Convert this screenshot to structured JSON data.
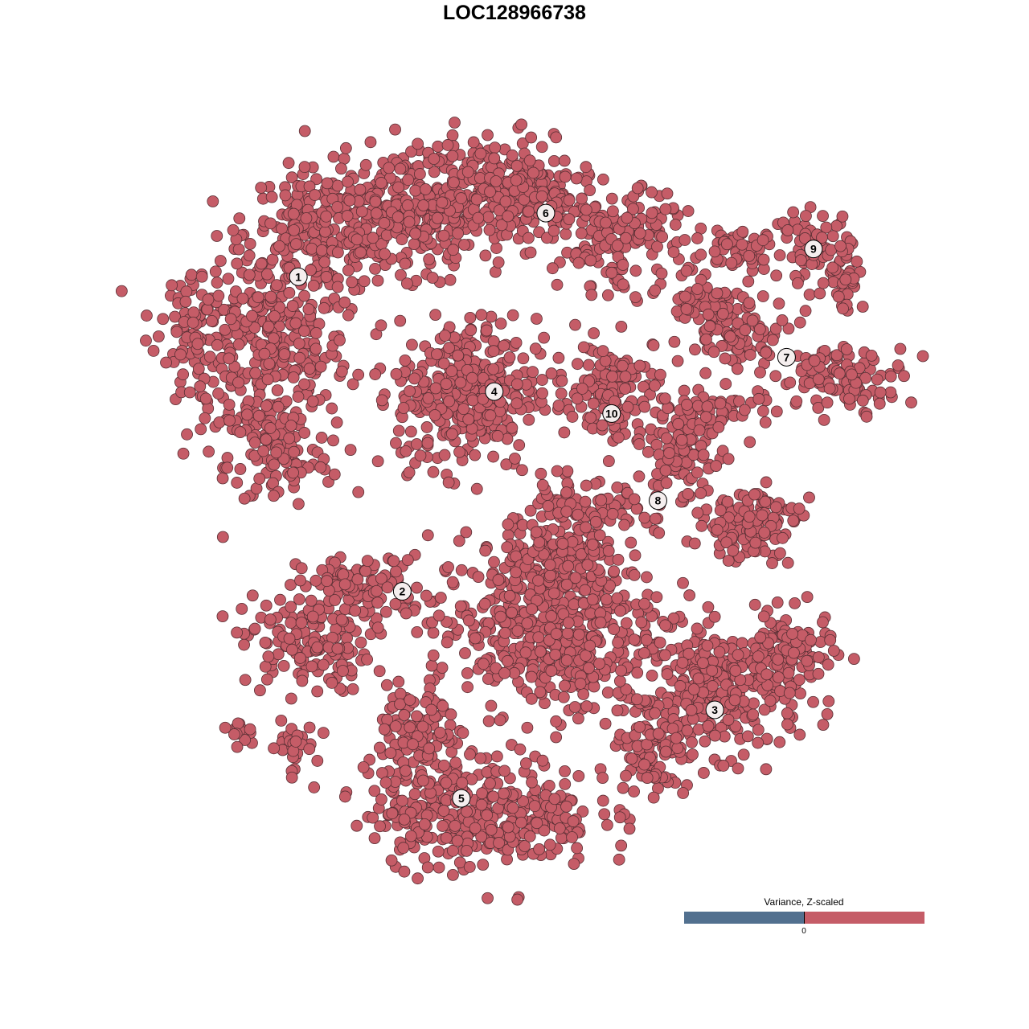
{
  "chart_data": {
    "type": "scatter",
    "title": "LOC128966738",
    "xlabel": "",
    "ylabel": "",
    "xlim": [
      -50,
      50
    ],
    "ylim": [
      -50,
      50
    ],
    "grid": false,
    "axes_visible": false,
    "point_color": "#c55c67",
    "point_stroke": "#5a3035",
    "clusters": [
      {
        "label": "1",
        "center": [
          -31.6,
          32.5
        ],
        "blobs": [
          {
            "c": [
              -36,
              22
            ],
            "s": [
              6.5,
              8.7
            ],
            "n": 350
          },
          {
            "c": [
              -28.5,
              38.5
            ],
            "s": [
              6,
              5
            ],
            "n": 220
          },
          {
            "c": [
              -34,
              7.6
            ],
            "s": [
              4,
              4
            ],
            "n": 80
          },
          {
            "c": [
              -45.7,
              26.4
            ],
            "s": [
              2.5,
              4
            ],
            "n": 60
          }
        ]
      },
      {
        "label": "2",
        "center": [
          -17.7,
          -10.5
        ],
        "blobs": [
          {
            "c": [
              -30.6,
              -17.6
            ],
            "s": [
              5,
              4
            ],
            "n": 150
          },
          {
            "c": [
              -23.1,
              -9.9
            ],
            "s": [
              5,
              2.5
            ],
            "n": 100
          },
          {
            "c": [
              -32.7,
              -31.9
            ],
            "s": [
              2,
              2
            ],
            "n": 30
          },
          {
            "c": [
              -39.2,
              -29.1
            ],
            "s": [
              1.5,
              1
            ],
            "n": 15
          }
        ]
      },
      {
        "label": "3",
        "center": [
          24.1,
          -26.7
        ],
        "blobs": [
          {
            "c": [
              25.3,
              -24.2
            ],
            "s": [
              6,
              5
            ],
            "n": 280
          },
          {
            "c": [
              33.9,
              -18.7
            ],
            "s": [
              3.5,
              3
            ],
            "n": 100
          },
          {
            "c": [
              15.6,
              -30.8
            ],
            "s": [
              3,
              4
            ],
            "n": 100
          }
        ]
      },
      {
        "label": "4",
        "center": [
          -5.4,
          16.8
        ],
        "blobs": [
          {
            "c": [
              -9.1,
              16.5
            ],
            "s": [
              5.5,
              6
            ],
            "n": 350
          }
        ]
      },
      {
        "label": "5",
        "center": [
          -9.8,
          -38.8
        ],
        "blobs": [
          {
            "c": [
              1.6,
              -15.4
            ],
            "s": [
              9,
              7
            ],
            "n": 500
          },
          {
            "c": [
              -7,
              -40.7
            ],
            "s": [
              9,
              4.5
            ],
            "n": 350
          },
          {
            "c": [
              -15.6,
              -30.8
            ],
            "s": [
              3,
              5
            ],
            "n": 120
          },
          {
            "c": [
              3.8,
              -6.6
            ],
            "s": [
              5,
              3
            ],
            "n": 120
          }
        ]
      },
      {
        "label": "6",
        "center": [
          1.5,
          41.2
        ],
        "blobs": [
          {
            "c": [
              -15.6,
              41.8
            ],
            "s": [
              7,
              5
            ],
            "n": 300
          },
          {
            "c": [
              -2.7,
              44
            ],
            "s": [
              6,
              4
            ],
            "n": 250
          },
          {
            "c": [
              11.3,
              37.4
            ],
            "s": [
              5,
              4
            ],
            "n": 150
          }
        ]
      },
      {
        "label": "7",
        "center": [
          33.7,
          21.5
        ],
        "blobs": [
          {
            "c": [
              27.4,
              25.3
            ],
            "s": [
              4,
              3
            ],
            "n": 100
          },
          {
            "c": [
              41.4,
              18.7
            ],
            "s": [
              5,
              2.5
            ],
            "n": 100
          },
          {
            "c": [
              22,
              29.7
            ],
            "s": [
              2,
              2
            ],
            "n": 40
          }
        ]
      },
      {
        "label": "8",
        "center": [
          16.5,
          1.9
        ],
        "blobs": [
          {
            "c": [
              19.9,
              8.8
            ],
            "s": [
              3,
              5
            ],
            "n": 100
          },
          {
            "c": [
              28.5,
              -1.1
            ],
            "s": [
              4,
              3
            ],
            "n": 120
          },
          {
            "c": [
              5.9,
              0
            ],
            "s": [
              6,
              2.5
            ],
            "n": 100
          },
          {
            "c": [
              25.2,
              14.3
            ],
            "s": [
              4,
              2
            ],
            "n": 50
          }
        ]
      },
      {
        "label": "9",
        "center": [
          37.3,
          36.3
        ],
        "blobs": [
          {
            "c": [
              37.1,
              36.3
            ],
            "s": [
              3,
              3
            ],
            "n": 60
          },
          {
            "c": [
              27.4,
              36.3
            ],
            "s": [
              3.5,
              2
            ],
            "n": 50
          },
          {
            "c": [
              41.4,
              33
            ],
            "s": [
              1.5,
              3
            ],
            "n": 40
          }
        ]
      },
      {
        "label": "10",
        "center": [
          10.3,
          13.8
        ],
        "blobs": [
          {
            "c": [
              10.2,
              18.7
            ],
            "s": [
              5,
              3
            ],
            "n": 100
          },
          {
            "c": [
              10.8,
              13.2
            ],
            "s": [
              2.5,
              3
            ],
            "n": 40
          }
        ]
      }
    ],
    "legend": {
      "title": "Variance, Z-scaled",
      "tick_label": "0",
      "low_color": "#52708f",
      "high_color": "#c55c67",
      "placement": "bottom-right"
    }
  }
}
